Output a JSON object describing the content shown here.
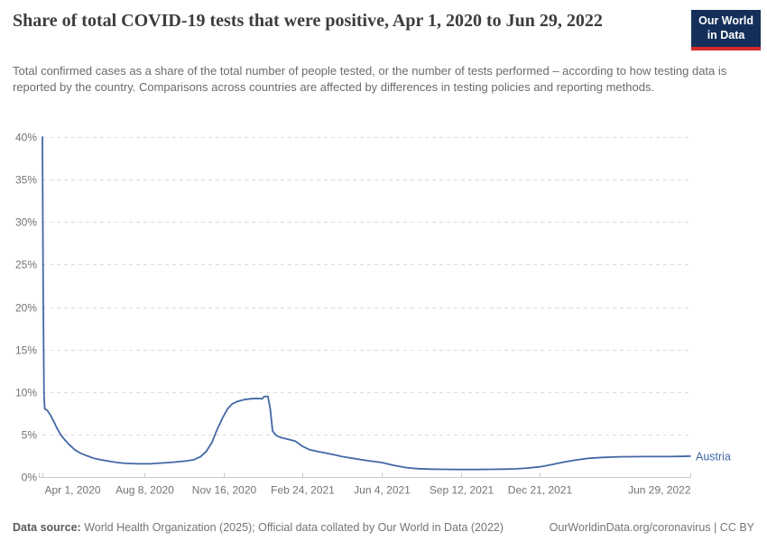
{
  "header": {
    "title": "Share of total COVID-19 tests that were positive, Apr 1, 2020 to Jun 29, 2022",
    "subtitle": "Total confirmed cases as a share of the total number of people tested, or the number of tests performed – according to how testing data is reported by the country. Comparisons across countries are affected by differences in testing policies and reporting methods.",
    "logo": {
      "line1": "Our World",
      "line2": "in Data"
    }
  },
  "footer": {
    "source_label": "Data source:",
    "source_text": " World Health Organization (2025); Official data collated by Our World in Data (2022)",
    "right_text": "OurWorldinData.org/coronavirus | CC BY"
  },
  "colors": {
    "line": "#4268a5",
    "logo_navy": "#14305a",
    "logo_red": "#d42b2b",
    "grid": "#dcdcdc",
    "axis": "#c8c8c8",
    "tick_label": "#737373"
  },
  "chart_data": {
    "type": "line",
    "title": "Share of total COVID-19 tests that were positive",
    "xlabel": "",
    "ylabel": "",
    "ylim": [
      0,
      40
    ],
    "xrange": [
      "2020-04-01",
      "2022-06-29"
    ],
    "grid": "horizontal-dashed",
    "legend": "line-end-label",
    "yticks": [
      {
        "value": 0,
        "label": "0%"
      },
      {
        "value": 5,
        "label": "5%"
      },
      {
        "value": 10,
        "label": "10%"
      },
      {
        "value": 15,
        "label": "15%"
      },
      {
        "value": 20,
        "label": "20%"
      },
      {
        "value": 25,
        "label": "25%"
      },
      {
        "value": 30,
        "label": "30%"
      },
      {
        "value": 35,
        "label": "35%"
      },
      {
        "value": 40,
        "label": "40%"
      }
    ],
    "xticks": [
      {
        "date": "2020-04-01",
        "label": "Apr 1, 2020",
        "align": "start"
      },
      {
        "date": "2020-08-08",
        "label": "Aug 8, 2020",
        "align": "middle"
      },
      {
        "date": "2020-11-16",
        "label": "Nov 16, 2020",
        "align": "middle"
      },
      {
        "date": "2021-02-24",
        "label": "Feb 24, 2021",
        "align": "middle"
      },
      {
        "date": "2021-06-04",
        "label": "Jun 4, 2021",
        "align": "middle"
      },
      {
        "date": "2021-09-12",
        "label": "Sep 12, 2021",
        "align": "middle"
      },
      {
        "date": "2021-12-21",
        "label": "Dec 21, 2021",
        "align": "middle"
      },
      {
        "date": "2022-06-29",
        "label": "Jun 29, 2022",
        "align": "end"
      }
    ],
    "series": [
      {
        "name": "Austria",
        "color": "#4268a5",
        "points": [
          [
            "2020-04-01",
            40.0
          ],
          [
            "2020-04-02",
            21.0
          ],
          [
            "2020-04-03",
            9.5
          ],
          [
            "2020-04-04",
            8.0
          ],
          [
            "2020-04-07",
            7.85
          ],
          [
            "2020-04-11",
            7.3
          ],
          [
            "2020-04-15",
            6.6
          ],
          [
            "2020-04-19",
            5.8
          ],
          [
            "2020-04-24",
            5.0
          ],
          [
            "2020-04-29",
            4.4
          ],
          [
            "2020-05-05",
            3.8
          ],
          [
            "2020-05-12",
            3.2
          ],
          [
            "2020-05-19",
            2.8
          ],
          [
            "2020-05-27",
            2.5
          ],
          [
            "2020-06-05",
            2.2
          ],
          [
            "2020-06-15",
            2.0
          ],
          [
            "2020-06-25",
            1.85
          ],
          [
            "2020-07-05",
            1.7
          ],
          [
            "2020-07-15",
            1.6
          ],
          [
            "2020-08-01",
            1.55
          ],
          [
            "2020-08-15",
            1.55
          ],
          [
            "2020-09-01",
            1.65
          ],
          [
            "2020-09-15",
            1.75
          ],
          [
            "2020-10-01",
            1.9
          ],
          [
            "2020-10-10",
            2.05
          ],
          [
            "2020-10-18",
            2.4
          ],
          [
            "2020-10-25",
            3.0
          ],
          [
            "2020-11-01",
            4.0
          ],
          [
            "2020-11-08",
            5.6
          ],
          [
            "2020-11-15",
            7.0
          ],
          [
            "2020-11-21",
            8.0
          ],
          [
            "2020-11-27",
            8.6
          ],
          [
            "2020-12-04",
            8.9
          ],
          [
            "2020-12-12",
            9.1
          ],
          [
            "2020-12-20",
            9.2
          ],
          [
            "2020-12-28",
            9.25
          ],
          [
            "2021-01-04",
            9.2
          ],
          [
            "2021-01-06",
            9.45
          ],
          [
            "2021-01-11",
            9.5
          ],
          [
            "2021-01-14",
            8.0
          ],
          [
            "2021-01-17",
            5.4
          ],
          [
            "2021-01-22",
            4.85
          ],
          [
            "2021-01-29",
            4.6
          ],
          [
            "2021-02-07",
            4.4
          ],
          [
            "2021-02-15",
            4.2
          ],
          [
            "2021-02-24",
            3.6
          ],
          [
            "2021-03-05",
            3.2
          ],
          [
            "2021-03-15",
            3.0
          ],
          [
            "2021-04-01",
            2.7
          ],
          [
            "2021-04-15",
            2.4
          ],
          [
            "2021-05-01",
            2.15
          ],
          [
            "2021-05-15",
            1.95
          ],
          [
            "2021-06-04",
            1.7
          ],
          [
            "2021-06-20",
            1.35
          ],
          [
            "2021-07-05",
            1.1
          ],
          [
            "2021-07-20",
            0.98
          ],
          [
            "2021-08-05",
            0.92
          ],
          [
            "2021-08-20",
            0.9
          ],
          [
            "2021-09-12",
            0.88
          ],
          [
            "2021-10-01",
            0.88
          ],
          [
            "2021-10-20",
            0.9
          ],
          [
            "2021-11-05",
            0.92
          ],
          [
            "2021-11-20",
            0.95
          ],
          [
            "2021-12-05",
            1.05
          ],
          [
            "2021-12-21",
            1.2
          ],
          [
            "2022-01-05",
            1.45
          ],
          [
            "2022-01-20",
            1.75
          ],
          [
            "2022-02-05",
            2.0
          ],
          [
            "2022-02-20",
            2.2
          ],
          [
            "2022-03-10",
            2.3
          ],
          [
            "2022-04-01",
            2.38
          ],
          [
            "2022-05-01",
            2.4
          ],
          [
            "2022-06-01",
            2.4
          ],
          [
            "2022-06-15",
            2.42
          ],
          [
            "2022-06-29",
            2.45
          ]
        ]
      }
    ]
  }
}
